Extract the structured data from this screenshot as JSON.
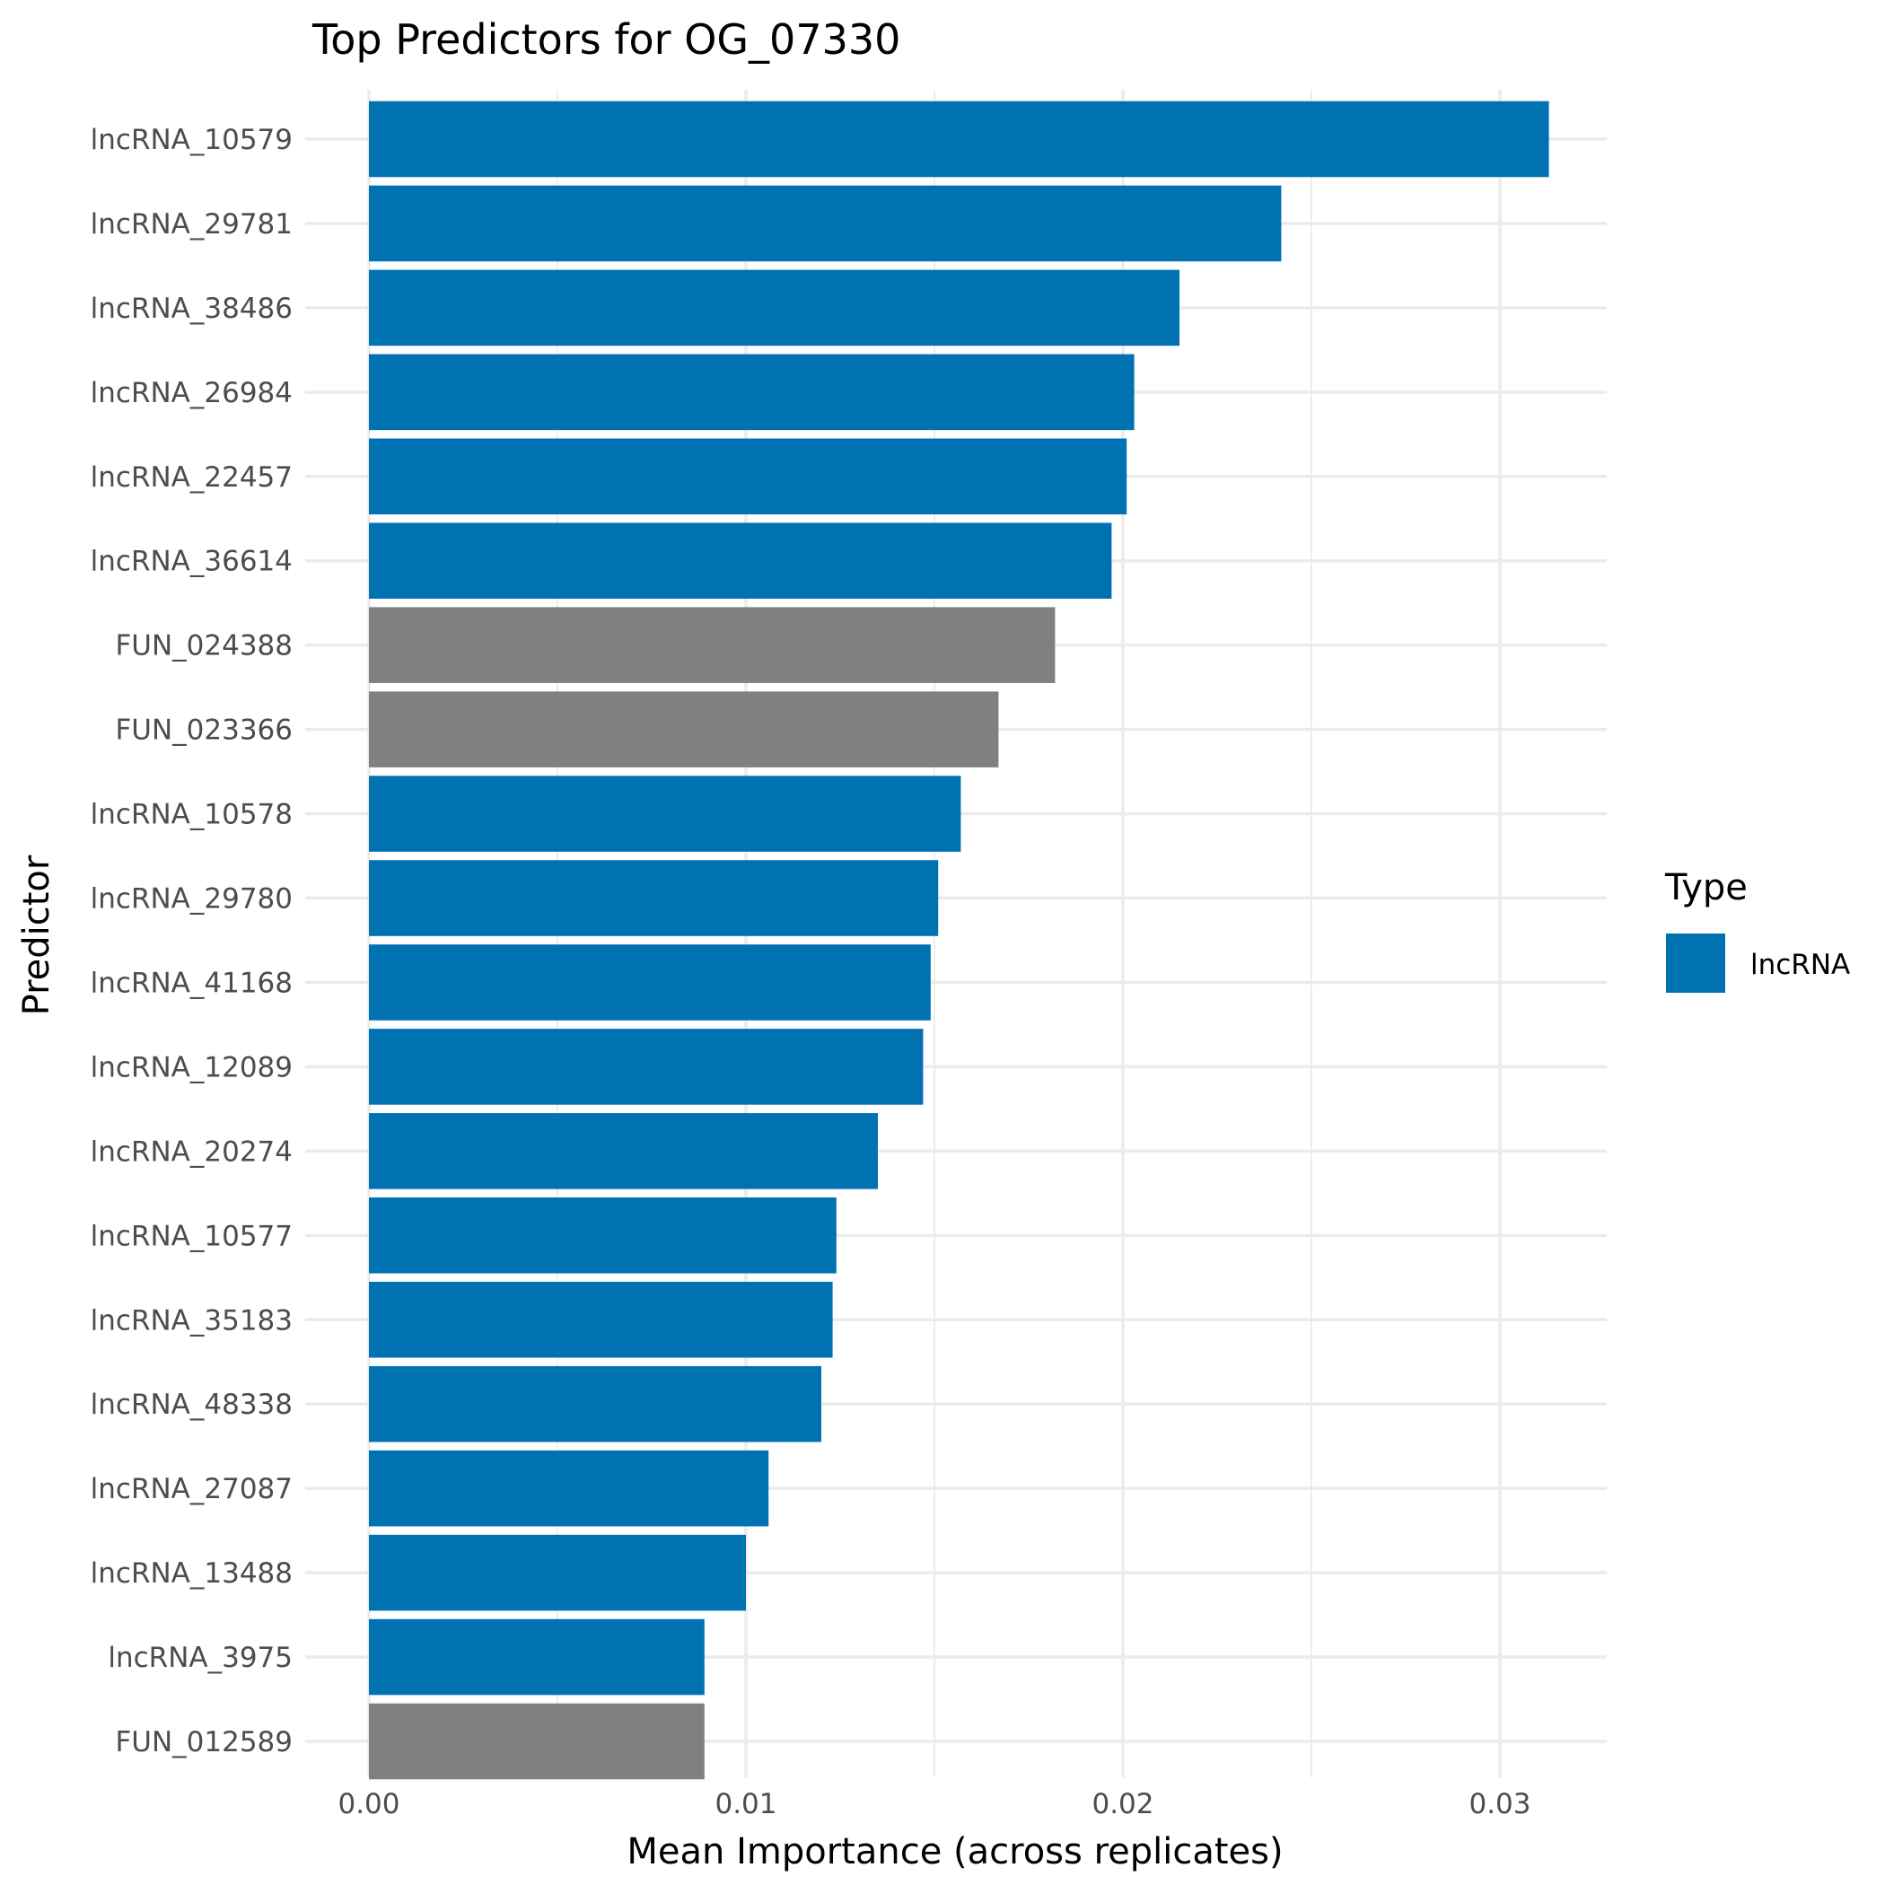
{
  "chart_data": {
    "type": "bar",
    "orientation": "horizontal",
    "title": "Top Predictors for OG_07330",
    "xlabel": "Mean Importance (across replicates)",
    "ylabel": "Predictor",
    "xlim": [
      0,
      0.033
    ],
    "x_ticks": [
      0.0,
      0.01,
      0.02,
      0.03
    ],
    "x_tick_labels": [
      "0.00",
      "0.01",
      "0.02",
      "0.03"
    ],
    "grid": true,
    "legend": {
      "title": "Type",
      "placement": "right",
      "entries": [
        {
          "label": "lncRNA",
          "color": "#0072B2"
        }
      ]
    },
    "colors": {
      "lncRNA": "#0072B2",
      "FUN": "#808080"
    },
    "bars": [
      {
        "label": "lncRNA_10579",
        "value": 0.0313,
        "type": "lncRNA"
      },
      {
        "label": "lncRNA_29781",
        "value": 0.0242,
        "type": "lncRNA"
      },
      {
        "label": "lncRNA_38486",
        "value": 0.0215,
        "type": "lncRNA"
      },
      {
        "label": "lncRNA_26984",
        "value": 0.0203,
        "type": "lncRNA"
      },
      {
        "label": "lncRNA_22457",
        "value": 0.0201,
        "type": "lncRNA"
      },
      {
        "label": "lncRNA_36614",
        "value": 0.0197,
        "type": "lncRNA"
      },
      {
        "label": "FUN_024388",
        "value": 0.0182,
        "type": "FUN"
      },
      {
        "label": "FUN_023366",
        "value": 0.0167,
        "type": "FUN"
      },
      {
        "label": "lncRNA_10578",
        "value": 0.0157,
        "type": "lncRNA"
      },
      {
        "label": "lncRNA_29780",
        "value": 0.0151,
        "type": "lncRNA"
      },
      {
        "label": "lncRNA_41168",
        "value": 0.0149,
        "type": "lncRNA"
      },
      {
        "label": "lncRNA_12089",
        "value": 0.0147,
        "type": "lncRNA"
      },
      {
        "label": "lncRNA_20274",
        "value": 0.0135,
        "type": "lncRNA"
      },
      {
        "label": "lncRNA_10577",
        "value": 0.0124,
        "type": "lncRNA"
      },
      {
        "label": "lncRNA_35183",
        "value": 0.0123,
        "type": "lncRNA"
      },
      {
        "label": "lncRNA_48338",
        "value": 0.012,
        "type": "lncRNA"
      },
      {
        "label": "lncRNA_27087",
        "value": 0.0106,
        "type": "lncRNA"
      },
      {
        "label": "lncRNA_13488",
        "value": 0.01,
        "type": "lncRNA"
      },
      {
        "label": "lncRNA_3975",
        "value": 0.0089,
        "type": "lncRNA"
      },
      {
        "label": "FUN_012589",
        "value": 0.0089,
        "type": "FUN"
      }
    ]
  }
}
